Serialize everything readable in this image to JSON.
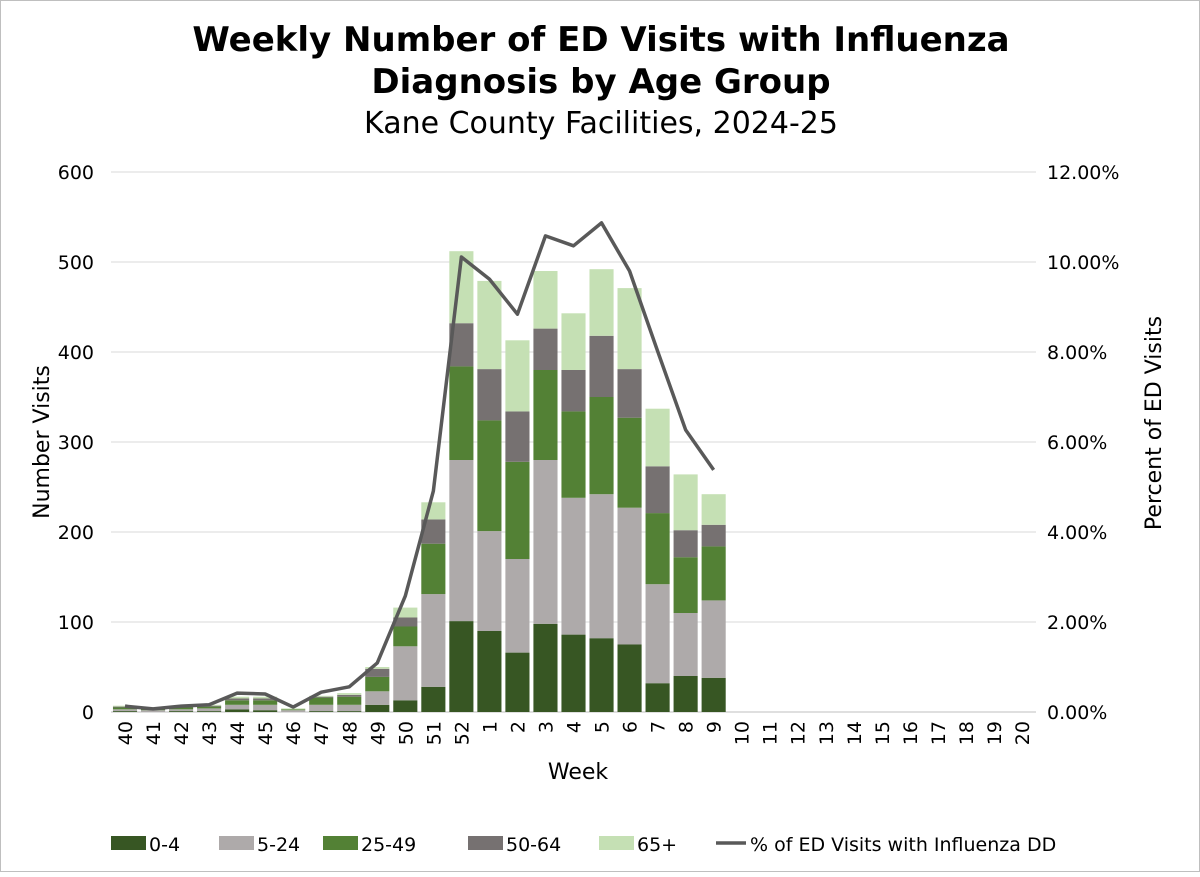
{
  "chart_data": {
    "type": "bar",
    "stacked": true,
    "title": "Weekly Number of ED Visits with Influenza Diagnosis by Age Group",
    "title_lines": [
      "Weekly Number of ED Visits with Influenza",
      "Diagnosis by Age Group"
    ],
    "subtitle": "Kane County Facilities, 2024-25",
    "xlabel": "Week",
    "ylabel": "Number Visits",
    "y2label": "Percent of ED Visits",
    "ylim": [
      0,
      600
    ],
    "y2lim": [
      0,
      12
    ],
    "yticks": [
      "0",
      "100",
      "200",
      "300",
      "400",
      "500",
      "600"
    ],
    "y2ticks": [
      "0.00%",
      "2.00%",
      "4.00%",
      "6.00%",
      "8.00%",
      "10.00%",
      "12.00%"
    ],
    "grid": true,
    "legend_position": "bottom",
    "categories": [
      "40",
      "41",
      "42",
      "43",
      "44",
      "45",
      "46",
      "47",
      "48",
      "49",
      "50",
      "51",
      "52",
      "1",
      "2",
      "3",
      "4",
      "5",
      "6",
      "7",
      "8",
      "9",
      "10",
      "11",
      "12",
      "13",
      "14",
      "15",
      "16",
      "17",
      "18",
      "19",
      "20"
    ],
    "series": [
      {
        "name": "0-4",
        "color": "#375623",
        "values": [
          1,
          0,
          1,
          1,
          3,
          2,
          0,
          1,
          1,
          8,
          13,
          28,
          101,
          90,
          66,
          98,
          86,
          82,
          75,
          32,
          40,
          38,
          null,
          null,
          null,
          null,
          null,
          null,
          null,
          null,
          null,
          null,
          null
        ]
      },
      {
        "name": "5-24",
        "color": "#AEAAAA",
        "values": [
          2,
          2,
          2,
          3,
          5,
          6,
          2,
          7,
          7,
          15,
          60,
          103,
          179,
          111,
          104,
          182,
          152,
          160,
          152,
          110,
          70,
          86,
          null,
          null,
          null,
          null,
          null,
          null,
          null,
          null,
          null,
          null,
          null
        ]
      },
      {
        "name": "25-49",
        "color": "#538135",
        "values": [
          2,
          1,
          2,
          2,
          5,
          5,
          1,
          8,
          9,
          16,
          22,
          56,
          104,
          123,
          108,
          100,
          96,
          108,
          100,
          79,
          62,
          60,
          null,
          null,
          null,
          null,
          null,
          null,
          null,
          null,
          null,
          null,
          null
        ]
      },
      {
        "name": "50-64",
        "color": "#767171",
        "values": [
          1,
          0,
          1,
          1,
          2,
          2,
          0,
          1,
          2,
          9,
          10,
          27,
          48,
          57,
          56,
          46,
          46,
          68,
          54,
          52,
          30,
          24,
          null,
          null,
          null,
          null,
          null,
          null,
          null,
          null,
          null,
          null,
          null
        ]
      },
      {
        "name": "65+",
        "color": "#C5E0B4",
        "values": [
          1,
          0,
          1,
          1,
          2,
          2,
          1,
          1,
          2,
          2,
          11,
          19,
          80,
          98,
          79,
          64,
          63,
          74,
          90,
          64,
          62,
          34,
          null,
          null,
          null,
          null,
          null,
          null,
          null,
          null,
          null,
          null,
          null
        ]
      }
    ],
    "line_series": {
      "name": "% of ED Visits with Influenza DD",
      "color": "#595959",
      "axis": "right",
      "values": [
        0.13,
        0.07,
        0.13,
        0.16,
        0.42,
        0.4,
        0.11,
        0.44,
        0.56,
        1.09,
        2.58,
        4.91,
        10.11,
        9.62,
        8.84,
        10.58,
        10.36,
        10.87,
        9.8,
        8.02,
        6.27,
        5.38,
        null,
        null,
        null,
        null,
        null,
        null,
        null,
        null,
        null,
        null,
        null
      ]
    }
  }
}
